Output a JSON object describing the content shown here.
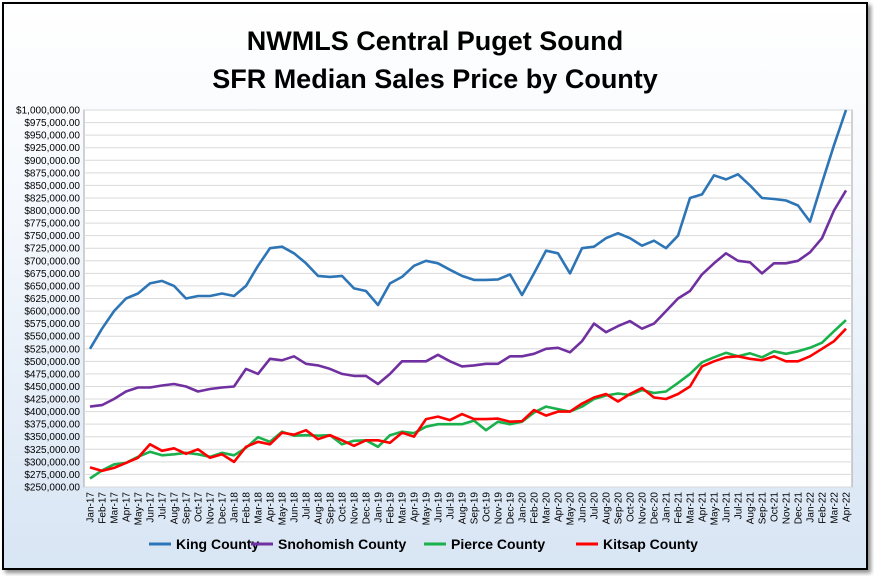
{
  "chart_data": {
    "type": "line",
    "title": "NWMLS Central Puget Sound",
    "subtitle": "SFR Median Sales Price by County",
    "xlabel": "",
    "ylabel": "",
    "ylim": [
      250000,
      1000000
    ],
    "ytick_step": 25000,
    "grid": true,
    "legend_position": "bottom",
    "x": [
      "Jan-17",
      "Feb-17",
      "Mar-17",
      "Apr-17",
      "May-17",
      "Jun-17",
      "Jul-17",
      "Aug-17",
      "Sep-17",
      "Oct-17",
      "Nov-17",
      "Dec-17",
      "Jan-18",
      "Feb-18",
      "Mar-18",
      "Apr-18",
      "May-18",
      "Jun-18",
      "Jul-18",
      "Aug-18",
      "Sep-18",
      "Oct-18",
      "Nov-18",
      "Dec-18",
      "Jan-19",
      "Feb-19",
      "Mar-19",
      "Apr-19",
      "May-19",
      "Jun-19",
      "Jul-19",
      "Aug-19",
      "Sep-19",
      "Oct-19",
      "Nov-19",
      "Dec-19",
      "Jan-20",
      "Feb-20",
      "Mar-20",
      "Apr-20",
      "May-20",
      "Jun-20",
      "Jul-20",
      "Aug-20",
      "Sep-20",
      "Oct-20",
      "Nov-20",
      "Dec-20",
      "Jan-21",
      "Feb-21",
      "Mar-21",
      "Apr-21",
      "May-21",
      "Jun-21",
      "Jul-21",
      "Aug-21",
      "Sep-21",
      "Oct-21",
      "Nov-21",
      "Dec-21",
      "Jan-22",
      "Feb-22",
      "Mar-22",
      "Apr-22"
    ],
    "series": [
      {
        "name": "King County",
        "color": "#2e75b6",
        "values": [
          525000,
          565000,
          600000,
          625000,
          635000,
          655000,
          660000,
          650000,
          625000,
          630000,
          630000,
          635000,
          630000,
          650000,
          690000,
          725000,
          728000,
          715000,
          695000,
          670000,
          668000,
          670000,
          645000,
          640000,
          612000,
          655000,
          668000,
          690000,
          700000,
          695000,
          682000,
          670000,
          662000,
          662000,
          663000,
          673000,
          632000,
          675000,
          720000,
          715000,
          675000,
          725000,
          728000,
          745000,
          755000,
          745000,
          730000,
          740000,
          725000,
          750000,
          825000,
          832000,
          870000,
          862000,
          872000,
          850000,
          825000,
          823000,
          820000,
          810000,
          778000,
          855000,
          930000,
          1000000
        ]
      },
      {
        "name": "Snohomish County",
        "color": "#7030a0",
        "values": [
          410000,
          413000,
          425000,
          440000,
          448000,
          448000,
          452000,
          455000,
          450000,
          440000,
          445000,
          448000,
          450000,
          485000,
          475000,
          505000,
          502000,
          510000,
          495000,
          492000,
          485000,
          475000,
          471000,
          471000,
          455000,
          475000,
          500000,
          500000,
          500000,
          513000,
          500000,
          490000,
          492000,
          495000,
          495000,
          510000,
          510000,
          515000,
          525000,
          527000,
          518000,
          540000,
          575000,
          558000,
          570000,
          580000,
          565000,
          575000,
          600000,
          625000,
          640000,
          673000,
          695000,
          715000,
          700000,
          697000,
          675000,
          695000,
          695000,
          700000,
          717000,
          745000,
          800000,
          840000
        ]
      },
      {
        "name": "Pierce County",
        "color": "#1ab04c",
        "values": [
          267000,
          283000,
          295000,
          298000,
          310000,
          320000,
          313000,
          315000,
          318000,
          315000,
          310000,
          318000,
          313000,
          328000,
          349000,
          340000,
          360000,
          352000,
          353000,
          352000,
          353000,
          335000,
          342000,
          343000,
          330000,
          353000,
          360000,
          357000,
          370000,
          375000,
          375000,
          375000,
          382000,
          363000,
          380000,
          375000,
          380000,
          398000,
          410000,
          405000,
          400000,
          410000,
          425000,
          432000,
          436000,
          433000,
          443000,
          437000,
          440000,
          457000,
          475000,
          498000,
          508000,
          517000,
          510000,
          516000,
          508000,
          520000,
          515000,
          520000,
          527000,
          537000,
          560000,
          582000
        ]
      },
      {
        "name": "Kitsap County",
        "color": "#ff0000",
        "values": [
          289000,
          282000,
          288000,
          298000,
          308000,
          335000,
          322000,
          327000,
          316000,
          325000,
          308000,
          315000,
          300000,
          330000,
          340000,
          335000,
          358000,
          354000,
          363000,
          345000,
          353000,
          343000,
          332000,
          343000,
          343000,
          338000,
          358000,
          350000,
          385000,
          390000,
          383000,
          395000,
          385000,
          385000,
          386000,
          380000,
          381000,
          403000,
          392000,
          400000,
          400000,
          416000,
          428000,
          435000,
          420000,
          435000,
          447000,
          428000,
          425000,
          435000,
          450000,
          490000,
          500000,
          508000,
          510000,
          505000,
          502000,
          510000,
          500000,
          500000,
          510000,
          525000,
          540000,
          565000
        ]
      }
    ]
  }
}
